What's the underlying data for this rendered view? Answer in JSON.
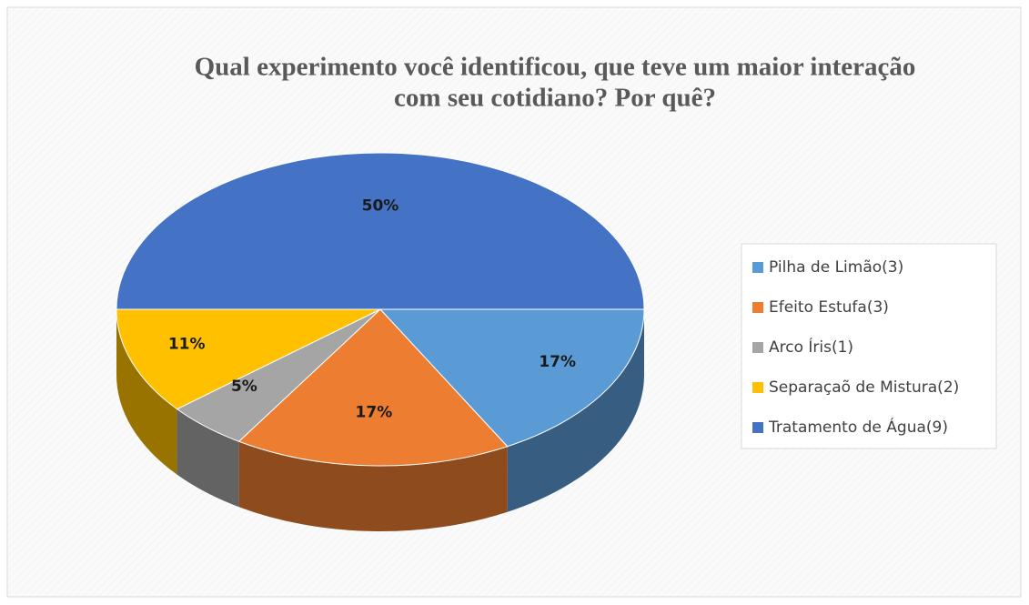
{
  "chart_data": {
    "type": "pie",
    "title": "Qual experimento você identificou, que teve um maior interação",
    "subtitle": "com seu cotidiano? Por quê?",
    "categories": [
      "Pilha de Limão(3)",
      "Efeito Estufa(3)",
      "Arco Íris(1)",
      "Separaçaõ de Mistura(2)",
      "Tratamento de Água(9)"
    ],
    "values": [
      17,
      17,
      5,
      11,
      50
    ],
    "value_labels": [
      "17%",
      "17%",
      "5%",
      "11%",
      "50%"
    ],
    "colors": [
      "#5b9bd5",
      "#ed7d31",
      "#a5a5a5",
      "#ffc000",
      "#4472c4"
    ],
    "legend": "right"
  }
}
